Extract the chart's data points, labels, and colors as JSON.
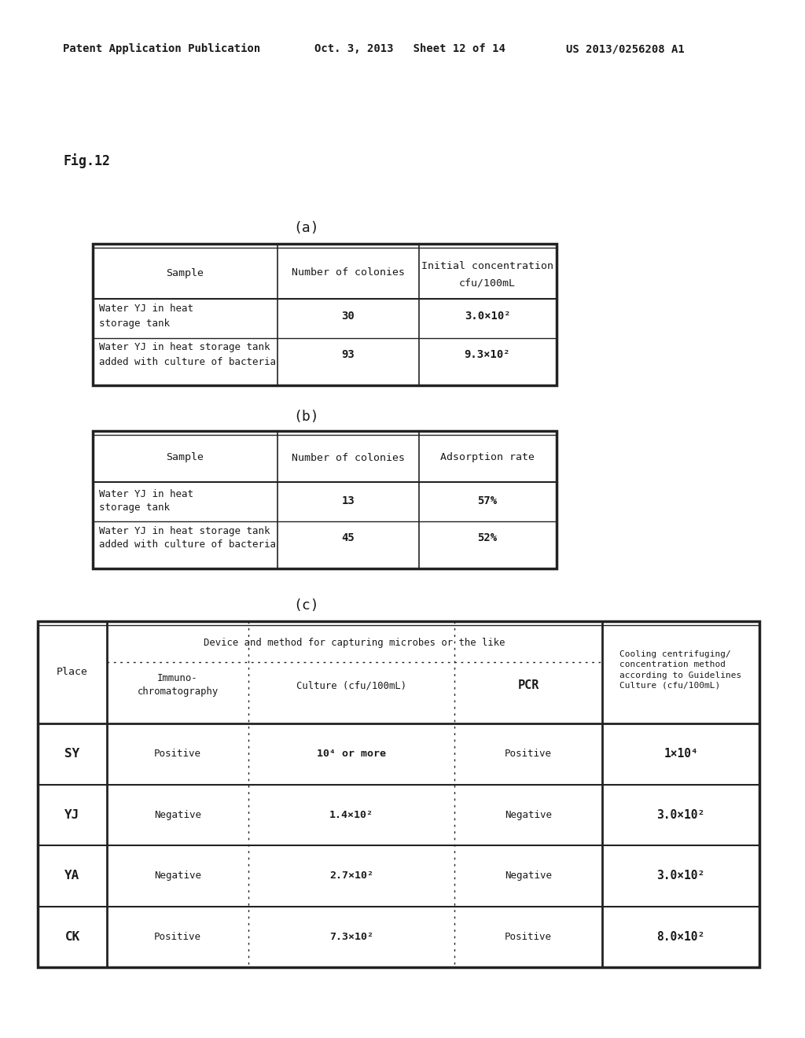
{
  "bg_color": "#ffffff",
  "header_text_left": "Patent Application Publication",
  "header_text_mid": "Oct. 3, 2013   Sheet 12 of 14",
  "header_text_right": "US 2013/0256208 A1",
  "fig_label": "Fig.12",
  "table_a_label": "(a)",
  "table_b_label": "(b)",
  "table_c_label": "(c)",
  "font_color": "#1a1a1a",
  "line_color": "#222222",
  "font_family": "DejaVu Sans Mono"
}
